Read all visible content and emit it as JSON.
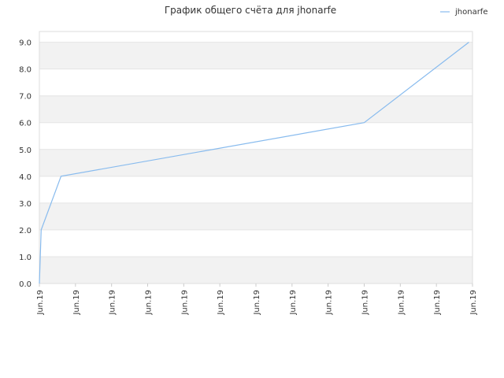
{
  "chart_data": {
    "type": "line",
    "title": "График общего счёта для jhonarfe",
    "xlabel": "",
    "ylabel": "",
    "x_tick_labels": [
      "Jun.19",
      "Jun.19",
      "Jun.19",
      "Jun.19",
      "Jun.19",
      "Jun.19",
      "Jun.19",
      "Jun.19",
      "Jun.19",
      "Jun.19",
      "Jun.19",
      "Jun.19",
      "Jun.19"
    ],
    "y_tick_labels": [
      "0.0",
      "1.0",
      "2.0",
      "3.0",
      "4.0",
      "5.0",
      "6.0",
      "7.0",
      "8.0",
      "9.0"
    ],
    "ylim": [
      0,
      9.4
    ],
    "grid": true,
    "legend": "top-right",
    "series": [
      {
        "name": "jhonarfe",
        "color": "#88bbee",
        "x": [
          0.0,
          0.05,
          0.6,
          9.0,
          11.9
        ],
        "values": [
          0,
          2,
          4,
          6,
          9
        ]
      }
    ]
  }
}
